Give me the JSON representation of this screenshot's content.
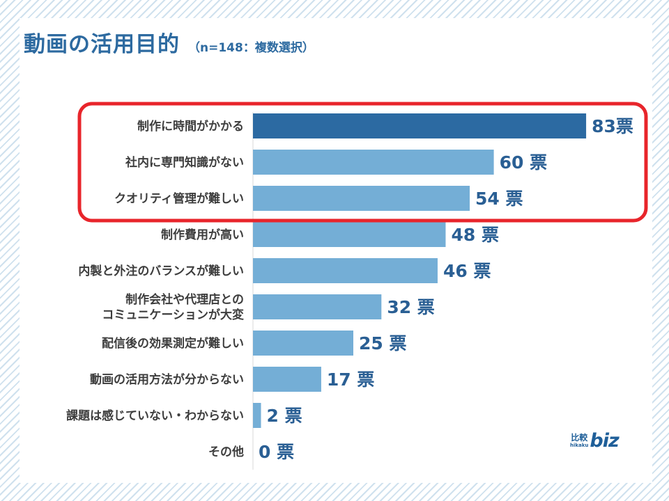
{
  "title": "動画の活用目的",
  "subtitle": "（n=148：複数選択）",
  "colors": {
    "highlight_bar": "#2c6aa2",
    "bar": "#74aed6",
    "label_text": "#2a5f94",
    "frame": "#e8252b"
  },
  "chart_data": {
    "type": "bar",
    "orientation": "horizontal",
    "categories": [
      "制作に時間がかかる",
      "社内に専門知識がない",
      "クオリティ管理が難しい",
      "制作費用が高い",
      "内製と外注のバランスが難しい",
      "制作会社や代理店との\nコミュニケーションが大変",
      "配信後の効果測定が難しい",
      "動画の活用方法が分からない",
      "課題は感じていない・わからない",
      "その他"
    ],
    "values": [
      83,
      60,
      54,
      48,
      46,
      32,
      25,
      17,
      2,
      0
    ],
    "value_labels": [
      "83票",
      "60 票",
      "54 票",
      "48 票",
      "46 票",
      "32 票",
      "25 票",
      "17 票",
      "2 票",
      "0 票"
    ],
    "unit": "票",
    "highlighted_index": 0,
    "highlight_frame_rows": [
      0,
      1,
      2
    ]
  },
  "logo": {
    "kanji": "比較",
    "roma": "hikaku",
    "biz": "biz"
  }
}
